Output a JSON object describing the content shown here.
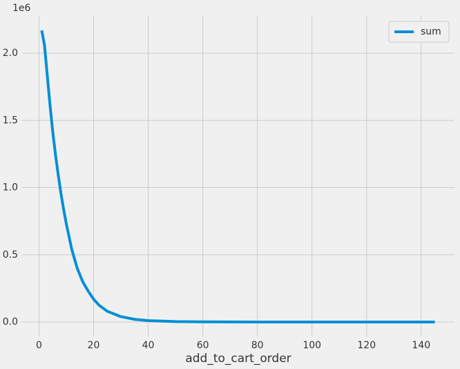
{
  "chart_data": {
    "type": "line",
    "xlabel": "add_to_cart_order",
    "y_offset_label": "1e6",
    "x": [
      1,
      2,
      3,
      4,
      5,
      6,
      7,
      8,
      9,
      10,
      12,
      14,
      16,
      18,
      20,
      22,
      25,
      30,
      35,
      40,
      50,
      60,
      80,
      100,
      120,
      145
    ],
    "series": [
      {
        "name": "sum",
        "color": "#008fd5",
        "values": [
          2170000,
          2060000,
          1840000,
          1620000,
          1420000,
          1250000,
          1100000,
          960000,
          840000,
          730000,
          540000,
          400000,
          300000,
          230000,
          170000,
          125000,
          80000,
          40000,
          20000,
          10000,
          3000,
          1000,
          200,
          50,
          15,
          1
        ]
      }
    ],
    "xlim": [
      -6.2,
      152.2
    ],
    "ylim": [
      -108000,
      2278000
    ],
    "xticks": [
      0,
      20,
      40,
      60,
      80,
      100,
      120,
      140
    ],
    "yticks": [
      {
        "value": 0,
        "label": "0.0"
      },
      {
        "value": 500000,
        "label": "0.5"
      },
      {
        "value": 1000000,
        "label": "1.0"
      },
      {
        "value": 1500000,
        "label": "1.5"
      },
      {
        "value": 2000000,
        "label": "2.0"
      }
    ],
    "grid": true,
    "legend": "upper right"
  }
}
